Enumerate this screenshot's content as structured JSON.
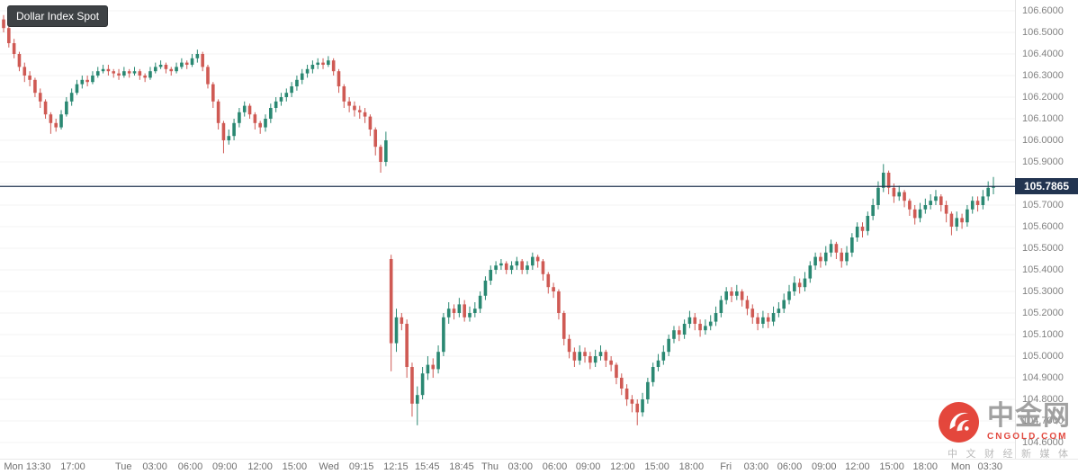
{
  "ui": {
    "symbol_badge": "Dollar Index Spot",
    "price_badge": "105.7865"
  },
  "watermark": {
    "brand": "中金网",
    "domain": "CNGOLD.COM",
    "tagline": "中 文 财 经 新 媒 体"
  },
  "chart_data": {
    "type": "candlestick",
    "title": "Dollar Index Spot",
    "last_price": 105.7865,
    "grid": "horizontal-faint",
    "legend_position": "none",
    "price_axis": {
      "top": 106.65,
      "bottom": 104.525,
      "tick_labels": [
        "106.6000",
        "106.5000",
        "106.4000",
        "106.3000",
        "106.2000",
        "106.1000",
        "106.0000",
        "105.9000",
        "105.8000",
        "105.7000",
        "105.6000",
        "105.5000",
        "105.4000",
        "105.3000",
        "105.2000",
        "105.1000",
        "105.0000",
        "104.9000",
        "104.8000",
        "104.7000",
        "104.6000"
      ]
    },
    "time_ticks": [
      {
        "label": "Mon 13:30",
        "f": 0.027
      },
      {
        "label": "17:00",
        "f": 0.072
      },
      {
        "label": "Tue",
        "f": 0.122
      },
      {
        "label": "03:00",
        "f": 0.153
      },
      {
        "label": "06:00",
        "f": 0.188
      },
      {
        "label": "09:00",
        "f": 0.222
      },
      {
        "label": "12:00",
        "f": 0.257
      },
      {
        "label": "15:00",
        "f": 0.291
      },
      {
        "label": "Wed",
        "f": 0.325
      },
      {
        "label": "09:15",
        "f": 0.357
      },
      {
        "label": "12:15",
        "f": 0.391
      },
      {
        "label": "15:45",
        "f": 0.422
      },
      {
        "label": "18:45",
        "f": 0.456
      },
      {
        "label": "Thu",
        "f": 0.484
      },
      {
        "label": "03:00",
        "f": 0.514
      },
      {
        "label": "06:00",
        "f": 0.548
      },
      {
        "label": "09:00",
        "f": 0.581
      },
      {
        "label": "12:00",
        "f": 0.615
      },
      {
        "label": "15:00",
        "f": 0.649
      },
      {
        "label": "18:00",
        "f": 0.683
      },
      {
        "label": "Fri",
        "f": 0.717
      },
      {
        "label": "03:00",
        "f": 0.747
      },
      {
        "label": "06:00",
        "f": 0.78
      },
      {
        "label": "09:00",
        "f": 0.814
      },
      {
        "label": "12:00",
        "f": 0.847
      },
      {
        "label": "15:00",
        "f": 0.881
      },
      {
        "label": "18:00",
        "f": 0.914
      },
      {
        "label": "Mon",
        "f": 0.949
      },
      {
        "label": "03:30",
        "f": 0.978
      }
    ],
    "colors": {
      "up": "#2a8872",
      "down": "#cf5a54",
      "last_price_line": "#223450",
      "axis_text": "#828282",
      "grid": "#f3f3f3"
    },
    "candles": [
      [
        106.56,
        106.58,
        106.5,
        106.52
      ],
      [
        106.52,
        106.53,
        106.43,
        106.45
      ],
      [
        106.45,
        106.47,
        106.38,
        106.4
      ],
      [
        106.4,
        106.41,
        106.32,
        106.34
      ],
      [
        106.34,
        106.36,
        106.27,
        106.3
      ],
      [
        106.3,
        106.32,
        106.25,
        106.28
      ],
      [
        106.28,
        106.29,
        106.2,
        106.22
      ],
      [
        106.22,
        106.24,
        106.15,
        106.18
      ],
      [
        106.18,
        106.19,
        106.1,
        106.12
      ],
      [
        106.12,
        106.13,
        106.03,
        106.08
      ],
      [
        106.08,
        106.1,
        106.04,
        106.06
      ],
      [
        106.06,
        106.14,
        106.05,
        106.12
      ],
      [
        106.12,
        106.2,
        106.11,
        106.18
      ],
      [
        106.18,
        106.24,
        106.16,
        106.22
      ],
      [
        106.22,
        106.28,
        106.21,
        106.26
      ],
      [
        106.26,
        106.3,
        106.24,
        106.28
      ],
      [
        106.28,
        106.3,
        106.25,
        106.27
      ],
      [
        106.27,
        106.32,
        106.26,
        106.3
      ],
      [
        106.3,
        106.34,
        106.29,
        106.32
      ],
      [
        106.32,
        106.35,
        106.31,
        106.33
      ],
      [
        106.33,
        106.35,
        106.3,
        106.32
      ],
      [
        106.32,
        106.33,
        106.29,
        106.31
      ],
      [
        106.31,
        106.33,
        106.28,
        106.3
      ],
      [
        106.3,
        106.34,
        106.29,
        106.32
      ],
      [
        106.32,
        106.33,
        106.29,
        106.31
      ],
      [
        106.31,
        106.34,
        106.3,
        106.32
      ],
      [
        106.32,
        106.33,
        106.28,
        106.3
      ],
      [
        106.3,
        106.31,
        106.27,
        106.29
      ],
      [
        106.29,
        106.34,
        106.28,
        106.32
      ],
      [
        106.32,
        106.36,
        106.31,
        106.34
      ],
      [
        106.34,
        106.37,
        106.33,
        106.35
      ],
      [
        106.35,
        106.36,
        106.31,
        106.33
      ],
      [
        106.33,
        106.34,
        106.3,
        106.32
      ],
      [
        106.32,
        106.36,
        106.31,
        106.34
      ],
      [
        106.34,
        106.38,
        106.33,
        106.36
      ],
      [
        106.36,
        106.37,
        106.33,
        106.35
      ],
      [
        106.35,
        106.4,
        106.34,
        106.38
      ],
      [
        106.38,
        106.42,
        106.36,
        106.4
      ],
      [
        106.4,
        106.41,
        106.32,
        106.34
      ],
      [
        106.34,
        106.35,
        106.24,
        106.26
      ],
      [
        106.26,
        106.27,
        106.15,
        106.18
      ],
      [
        106.18,
        106.19,
        106.05,
        106.08
      ],
      [
        106.08,
        106.09,
        105.94,
        106.0
      ],
      [
        106.0,
        106.05,
        105.98,
        106.02
      ],
      [
        106.02,
        106.1,
        106.0,
        106.08
      ],
      [
        106.08,
        106.15,
        106.06,
        106.13
      ],
      [
        106.13,
        106.18,
        106.11,
        106.16
      ],
      [
        106.16,
        106.17,
        106.1,
        106.12
      ],
      [
        106.12,
        106.13,
        106.05,
        106.08
      ],
      [
        106.08,
        106.09,
        106.03,
        106.06
      ],
      [
        106.06,
        106.12,
        106.04,
        106.1
      ],
      [
        106.1,
        106.17,
        106.08,
        106.15
      ],
      [
        106.15,
        106.2,
        106.13,
        106.18
      ],
      [
        106.18,
        106.22,
        106.16,
        106.2
      ],
      [
        106.2,
        106.24,
        106.18,
        106.22
      ],
      [
        106.22,
        106.27,
        106.2,
        106.25
      ],
      [
        106.25,
        106.3,
        106.23,
        106.28
      ],
      [
        106.28,
        106.33,
        106.26,
        106.31
      ],
      [
        106.31,
        106.35,
        106.29,
        106.33
      ],
      [
        106.33,
        106.37,
        106.31,
        106.35
      ],
      [
        106.35,
        106.38,
        106.33,
        106.36
      ],
      [
        106.36,
        106.38,
        106.33,
        106.35
      ],
      [
        106.35,
        106.39,
        106.34,
        106.37
      ],
      [
        106.37,
        106.38,
        106.3,
        106.32
      ],
      [
        106.32,
        106.33,
        106.22,
        106.25
      ],
      [
        106.25,
        106.26,
        106.15,
        106.18
      ],
      [
        106.18,
        106.2,
        106.13,
        106.16
      ],
      [
        106.16,
        106.18,
        106.11,
        106.14
      ],
      [
        106.14,
        106.16,
        106.1,
        106.13
      ],
      [
        106.13,
        106.15,
        106.08,
        106.11
      ],
      [
        106.11,
        106.12,
        106.02,
        106.05
      ],
      [
        106.05,
        106.06,
        105.93,
        105.97
      ],
      [
        105.97,
        105.98,
        105.85,
        105.9
      ],
      [
        105.9,
        106.04,
        105.88,
        106.0
      ],
      [
        105.45,
        105.47,
        104.93,
        105.06
      ],
      [
        105.06,
        105.22,
        105.02,
        105.18
      ],
      [
        105.18,
        105.2,
        105.12,
        105.15
      ],
      [
        105.15,
        105.17,
        104.9,
        104.95
      ],
      [
        104.95,
        104.97,
        104.72,
        104.78
      ],
      [
        104.78,
        104.86,
        104.68,
        104.82
      ],
      [
        104.82,
        104.95,
        104.8,
        104.92
      ],
      [
        104.92,
        105.0,
        104.89,
        104.96
      ],
      [
        104.96,
        104.99,
        104.9,
        104.94
      ],
      [
        104.94,
        105.05,
        104.92,
        105.02
      ],
      [
        105.02,
        105.2,
        105.0,
        105.18
      ],
      [
        105.18,
        105.25,
        105.15,
        105.22
      ],
      [
        105.22,
        105.24,
        105.17,
        105.2
      ],
      [
        105.2,
        105.27,
        105.18,
        105.24
      ],
      [
        105.24,
        105.26,
        105.16,
        105.18
      ],
      [
        105.18,
        105.23,
        105.16,
        105.2
      ],
      [
        105.2,
        105.25,
        105.18,
        105.22
      ],
      [
        105.22,
        105.3,
        105.2,
        105.28
      ],
      [
        105.28,
        105.37,
        105.26,
        105.35
      ],
      [
        105.35,
        105.42,
        105.33,
        105.4
      ],
      [
        105.4,
        105.44,
        105.38,
        105.42
      ],
      [
        105.42,
        105.45,
        105.4,
        105.43
      ],
      [
        105.43,
        105.44,
        105.38,
        105.4
      ],
      [
        105.4,
        105.44,
        105.38,
        105.42
      ],
      [
        105.42,
        105.46,
        105.4,
        105.44
      ],
      [
        105.44,
        105.45,
        105.38,
        105.4
      ],
      [
        105.4,
        105.44,
        105.38,
        105.42
      ],
      [
        105.42,
        105.48,
        105.4,
        105.46
      ],
      [
        105.46,
        105.47,
        105.41,
        105.44
      ],
      [
        105.44,
        105.45,
        105.35,
        105.38
      ],
      [
        105.38,
        105.39,
        105.29,
        105.32
      ],
      [
        105.32,
        105.34,
        105.27,
        105.3
      ],
      [
        105.3,
        105.31,
        105.17,
        105.2
      ],
      [
        105.2,
        105.21,
        105.05,
        105.08
      ],
      [
        105.08,
        105.1,
        104.99,
        105.02
      ],
      [
        105.02,
        105.04,
        104.95,
        104.98
      ],
      [
        104.98,
        105.05,
        104.96,
        105.02
      ],
      [
        105.02,
        105.04,
        104.97,
        105.0
      ],
      [
        105.0,
        105.02,
        104.94,
        104.97
      ],
      [
        104.97,
        105.03,
        104.95,
        105.0
      ],
      [
        105.0,
        105.05,
        104.98,
        105.02
      ],
      [
        105.02,
        105.03,
        104.95,
        104.98
      ],
      [
        104.98,
        105.0,
        104.93,
        104.96
      ],
      [
        104.96,
        104.97,
        104.87,
        104.9
      ],
      [
        104.9,
        104.92,
        104.82,
        104.85
      ],
      [
        104.85,
        104.87,
        104.77,
        104.8
      ],
      [
        104.8,
        104.82,
        104.74,
        104.78
      ],
      [
        104.78,
        104.8,
        104.68,
        104.74
      ],
      [
        104.74,
        104.83,
        104.72,
        104.8
      ],
      [
        104.8,
        104.9,
        104.78,
        104.88
      ],
      [
        104.88,
        104.97,
        104.86,
        104.95
      ],
      [
        104.95,
        105.01,
        104.93,
        104.98
      ],
      [
        104.98,
        105.05,
        104.96,
        105.02
      ],
      [
        105.02,
        105.1,
        105.0,
        105.08
      ],
      [
        105.08,
        105.14,
        105.06,
        105.12
      ],
      [
        105.12,
        105.14,
        105.07,
        105.1
      ],
      [
        105.1,
        105.17,
        105.08,
        105.15
      ],
      [
        105.15,
        105.21,
        105.13,
        105.18
      ],
      [
        105.18,
        105.2,
        105.12,
        105.15
      ],
      [
        105.15,
        105.17,
        105.09,
        105.12
      ],
      [
        105.12,
        105.17,
        105.1,
        105.14
      ],
      [
        105.14,
        105.19,
        105.12,
        105.16
      ],
      [
        105.16,
        105.23,
        105.14,
        105.2
      ],
      [
        105.2,
        105.28,
        105.18,
        105.26
      ],
      [
        105.26,
        105.32,
        105.24,
        105.3
      ],
      [
        105.3,
        105.32,
        105.25,
        105.28
      ],
      [
        105.28,
        105.33,
        105.26,
        105.3
      ],
      [
        105.3,
        105.31,
        105.23,
        105.26
      ],
      [
        105.26,
        105.28,
        105.19,
        105.22
      ],
      [
        105.22,
        105.24,
        105.15,
        105.18
      ],
      [
        105.18,
        105.2,
        105.12,
        105.15
      ],
      [
        105.15,
        105.21,
        105.13,
        105.18
      ],
      [
        105.18,
        105.2,
        105.13,
        105.16
      ],
      [
        105.16,
        105.23,
        105.14,
        105.2
      ],
      [
        105.2,
        105.25,
        105.18,
        105.22
      ],
      [
        105.22,
        105.29,
        105.2,
        105.26
      ],
      [
        105.26,
        105.33,
        105.24,
        105.3
      ],
      [
        105.3,
        105.37,
        105.28,
        105.34
      ],
      [
        105.34,
        105.36,
        105.29,
        105.32
      ],
      [
        105.32,
        105.39,
        105.3,
        105.36
      ],
      [
        105.36,
        105.44,
        105.34,
        105.42
      ],
      [
        105.42,
        105.48,
        105.4,
        105.46
      ],
      [
        105.46,
        105.48,
        105.41,
        105.44
      ],
      [
        105.44,
        105.51,
        105.42,
        105.48
      ],
      [
        105.48,
        105.54,
        105.46,
        105.52
      ],
      [
        105.52,
        105.53,
        105.45,
        105.48
      ],
      [
        105.48,
        105.5,
        105.41,
        105.44
      ],
      [
        105.44,
        105.51,
        105.42,
        105.48
      ],
      [
        105.48,
        105.57,
        105.46,
        105.55
      ],
      [
        105.55,
        105.62,
        105.53,
        105.6
      ],
      [
        105.6,
        105.62,
        105.55,
        105.58
      ],
      [
        105.58,
        105.67,
        105.56,
        105.65
      ],
      [
        105.65,
        105.73,
        105.63,
        105.7
      ],
      [
        105.7,
        105.81,
        105.68,
        105.78
      ],
      [
        105.78,
        105.89,
        105.76,
        105.85
      ],
      [
        105.85,
        105.86,
        105.75,
        105.78
      ],
      [
        105.78,
        105.8,
        105.71,
        105.74
      ],
      [
        105.74,
        105.79,
        105.72,
        105.76
      ],
      [
        105.76,
        105.77,
        105.69,
        105.72
      ],
      [
        105.72,
        105.73,
        105.65,
        105.68
      ],
      [
        105.68,
        105.7,
        105.61,
        105.64
      ],
      [
        105.64,
        105.71,
        105.62,
        105.68
      ],
      [
        105.68,
        105.73,
        105.66,
        105.7
      ],
      [
        105.7,
        105.75,
        105.68,
        105.72
      ],
      [
        105.72,
        105.77,
        105.7,
        105.74
      ],
      [
        105.74,
        105.75,
        105.67,
        105.7
      ],
      [
        105.7,
        105.72,
        105.62,
        105.66
      ],
      [
        105.66,
        105.67,
        105.56,
        105.6
      ],
      [
        105.6,
        105.67,
        105.58,
        105.64
      ],
      [
        105.64,
        105.66,
        105.59,
        105.62
      ],
      [
        105.62,
        105.7,
        105.6,
        105.68
      ],
      [
        105.68,
        105.74,
        105.66,
        105.72
      ],
      [
        105.72,
        105.74,
        105.67,
        105.7
      ],
      [
        105.7,
        105.77,
        105.68,
        105.74
      ],
      [
        105.74,
        105.81,
        105.72,
        105.78
      ],
      [
        105.78,
        105.83,
        105.75,
        105.7865
      ]
    ]
  }
}
